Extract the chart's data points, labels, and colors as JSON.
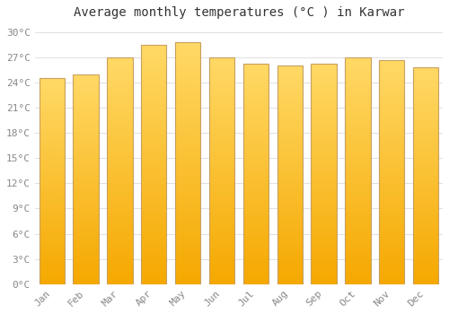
{
  "title": "Average monthly temperatures (°C ) in Karwar",
  "months": [
    "Jan",
    "Feb",
    "Mar",
    "Apr",
    "May",
    "Jun",
    "Jul",
    "Aug",
    "Sep",
    "Oct",
    "Nov",
    "Dec"
  ],
  "values": [
    24.5,
    25.0,
    27.0,
    28.5,
    28.8,
    27.0,
    26.2,
    26.0,
    26.2,
    27.0,
    26.7,
    25.8
  ],
  "bar_color_bottom": "#F5A800",
  "bar_color_top": "#FFD966",
  "bar_edge_color": "#C8A060",
  "background_color": "#FFFFFF",
  "grid_color": "#E0E0E0",
  "text_color": "#888888",
  "title_color": "#333333",
  "ylim": [
    0,
    31
  ],
  "yticks": [
    0,
    3,
    6,
    9,
    12,
    15,
    18,
    21,
    24,
    27,
    30
  ],
  "title_fontsize": 10,
  "tick_fontsize": 8,
  "bar_width": 0.75
}
